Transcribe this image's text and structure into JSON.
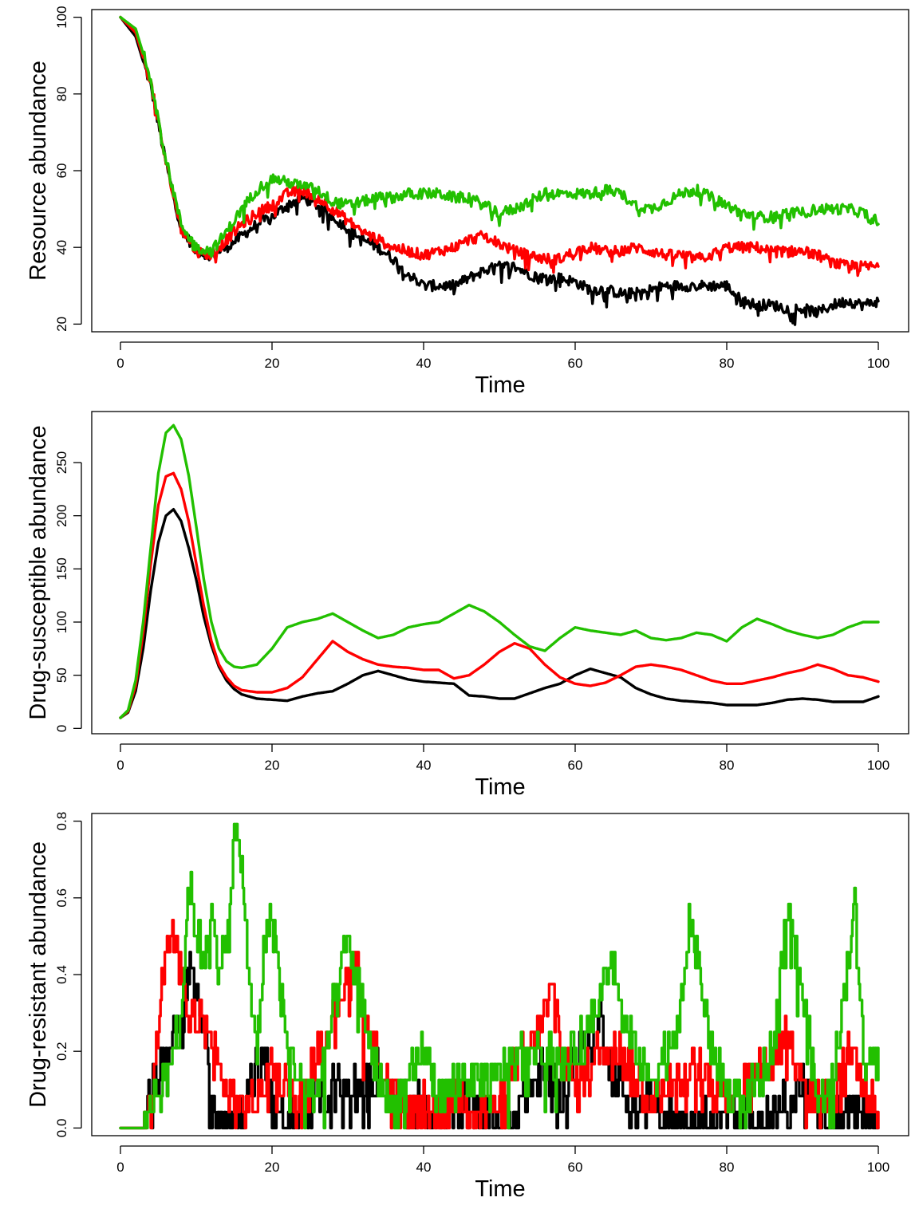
{
  "colors": {
    "black": "#000000",
    "red": "#ff0000",
    "green": "#22c000"
  },
  "chart_data": [
    {
      "type": "line",
      "xlabel": "Time",
      "ylabel": "Resource abundance",
      "xlim": [
        0,
        100
      ],
      "ylim": [
        18,
        102
      ],
      "xticks": [
        0,
        20,
        40,
        60,
        80,
        100
      ],
      "yticks": [
        20,
        40,
        60,
        80,
        100
      ],
      "grid": false,
      "noise": 1.4,
      "series": [
        {
          "color": "#000000",
          "x": [
            0,
            2,
            4,
            6,
            8,
            10,
            12,
            14,
            16,
            18,
            20,
            22,
            24,
            26,
            28,
            30,
            32,
            34,
            36,
            38,
            40,
            42,
            44,
            46,
            48,
            50,
            52,
            54,
            56,
            58,
            60,
            62,
            64,
            66,
            68,
            70,
            72,
            74,
            76,
            78,
            80,
            82,
            84,
            86,
            88,
            90,
            92,
            94,
            96,
            98,
            100
          ],
          "y": [
            100,
            95,
            82,
            62,
            45,
            39,
            38,
            40,
            43,
            46,
            48,
            51,
            53,
            51,
            48,
            45,
            42,
            40,
            37,
            33,
            30,
            30,
            30,
            32,
            34,
            35,
            35,
            33,
            32,
            32,
            31,
            29,
            29,
            28,
            28,
            29,
            30,
            30,
            30,
            30,
            30,
            26,
            25,
            25,
            24,
            24,
            23,
            25,
            26,
            25,
            26
          ]
        },
        {
          "color": "#ff0000",
          "x": [
            0,
            2,
            4,
            6,
            8,
            10,
            12,
            14,
            16,
            18,
            20,
            22,
            24,
            26,
            28,
            30,
            32,
            34,
            36,
            38,
            40,
            42,
            44,
            46,
            48,
            50,
            52,
            54,
            56,
            58,
            60,
            62,
            64,
            66,
            68,
            70,
            72,
            74,
            76,
            78,
            80,
            82,
            84,
            86,
            88,
            90,
            92,
            94,
            96,
            98,
            100
          ],
          "y": [
            100,
            96,
            83,
            62,
            45,
            39,
            38,
            42,
            46,
            49,
            51,
            54,
            55,
            53,
            50,
            47,
            44,
            42,
            40,
            39,
            38,
            39,
            40,
            42,
            43,
            41,
            39,
            38,
            37,
            37,
            39,
            40,
            39,
            39,
            40,
            39,
            38,
            38,
            37,
            38,
            40,
            40,
            40,
            39,
            39,
            39,
            38,
            36,
            35,
            35,
            35
          ]
        },
        {
          "color": "#22c000",
          "x": [
            0,
            2,
            4,
            6,
            8,
            10,
            12,
            14,
            16,
            18,
            20,
            22,
            24,
            26,
            28,
            30,
            32,
            34,
            36,
            38,
            40,
            42,
            44,
            46,
            48,
            50,
            52,
            54,
            56,
            58,
            60,
            62,
            64,
            66,
            68,
            70,
            72,
            74,
            76,
            78,
            80,
            82,
            84,
            86,
            88,
            90,
            92,
            94,
            96,
            98,
            100
          ],
          "y": [
            100,
            97,
            84,
            63,
            46,
            40,
            39,
            44,
            50,
            55,
            58,
            57,
            56,
            55,
            52,
            51,
            52,
            53,
            53,
            54,
            54,
            54,
            53,
            53,
            51,
            49,
            50,
            52,
            54,
            54,
            54,
            54,
            55,
            54,
            51,
            50,
            52,
            54,
            55,
            53,
            51,
            49,
            48,
            48,
            49,
            49,
            50,
            50,
            50,
            49,
            47
          ]
        }
      ]
    },
    {
      "type": "line",
      "xlabel": "Time",
      "ylabel": "Drug-susceptible abundance",
      "xlim": [
        0,
        100
      ],
      "ylim": [
        -5,
        298
      ],
      "xticks": [
        0,
        20,
        40,
        60,
        80,
        100
      ],
      "yticks": [
        0,
        50,
        100,
        150,
        200,
        250
      ],
      "grid": false,
      "noise": 0,
      "series": [
        {
          "color": "#000000",
          "x": [
            0,
            1,
            2,
            3,
            4,
            5,
            6,
            7,
            8,
            9,
            10,
            11,
            12,
            13,
            14,
            15,
            16,
            18,
            20,
            22,
            24,
            26,
            28,
            30,
            32,
            34,
            36,
            38,
            40,
            42,
            44,
            46,
            48,
            50,
            52,
            54,
            56,
            58,
            60,
            62,
            64,
            66,
            68,
            70,
            72,
            74,
            76,
            78,
            80,
            82,
            84,
            86,
            88,
            90,
            92,
            94,
            96,
            98,
            100
          ],
          "y": [
            10,
            15,
            35,
            75,
            130,
            175,
            200,
            206,
            195,
            170,
            140,
            105,
            78,
            58,
            45,
            37,
            32,
            28,
            27,
            26,
            30,
            33,
            35,
            42,
            50,
            54,
            50,
            46,
            44,
            43,
            42,
            31,
            30,
            28,
            28,
            33,
            38,
            42,
            50,
            56,
            52,
            48,
            38,
            32,
            28,
            26,
            25,
            24,
            22,
            22,
            22,
            24,
            27,
            28,
            27,
            25,
            25,
            25,
            30
          ]
        },
        {
          "color": "#ff0000",
          "x": [
            0,
            1,
            2,
            3,
            4,
            5,
            6,
            7,
            8,
            9,
            10,
            11,
            12,
            13,
            14,
            15,
            16,
            18,
            20,
            22,
            24,
            26,
            28,
            30,
            32,
            34,
            36,
            38,
            40,
            42,
            44,
            46,
            48,
            50,
            52,
            54,
            56,
            58,
            60,
            62,
            64,
            66,
            68,
            70,
            72,
            74,
            76,
            78,
            80,
            82,
            84,
            86,
            88,
            90,
            92,
            94,
            96,
            98,
            100
          ],
          "y": [
            10,
            16,
            40,
            90,
            155,
            210,
            237,
            240,
            225,
            195,
            155,
            115,
            82,
            60,
            48,
            40,
            36,
            34,
            34,
            38,
            48,
            65,
            82,
            72,
            65,
            60,
            58,
            57,
            55,
            55,
            47,
            50,
            60,
            72,
            80,
            75,
            60,
            48,
            42,
            40,
            43,
            50,
            58,
            60,
            58,
            55,
            50,
            45,
            42,
            42,
            45,
            48,
            52,
            55,
            60,
            56,
            50,
            48,
            44
          ]
        },
        {
          "color": "#22c000",
          "x": [
            0,
            1,
            2,
            3,
            4,
            5,
            6,
            7,
            8,
            9,
            10,
            11,
            12,
            13,
            14,
            15,
            16,
            18,
            20,
            22,
            24,
            26,
            28,
            30,
            32,
            34,
            36,
            38,
            40,
            42,
            44,
            46,
            48,
            50,
            52,
            54,
            56,
            58,
            60,
            62,
            64,
            66,
            68,
            70,
            72,
            74,
            76,
            78,
            80,
            82,
            84,
            86,
            88,
            90,
            92,
            94,
            96,
            98,
            100
          ],
          "y": [
            10,
            17,
            45,
            100,
            170,
            240,
            278,
            285,
            272,
            238,
            190,
            140,
            100,
            75,
            63,
            58,
            57,
            60,
            75,
            95,
            100,
            103,
            108,
            100,
            92,
            85,
            88,
            95,
            98,
            100,
            108,
            116,
            110,
            100,
            88,
            77,
            73,
            85,
            95,
            92,
            90,
            88,
            92,
            85,
            83,
            85,
            90,
            88,
            82,
            95,
            103,
            98,
            92,
            88,
            85,
            88,
            95,
            100,
            100
          ]
        }
      ]
    },
    {
      "type": "line",
      "xlabel": "Time",
      "ylabel": "Drug-resistant abundance",
      "xlim": [
        0,
        100
      ],
      "ylim": [
        -0.02,
        0.82
      ],
      "xticks": [
        0,
        20,
        40,
        60,
        80,
        100
      ],
      "yticks": [
        0.0,
        0.2,
        0.4,
        0.6,
        0.8
      ],
      "ytick_labels": [
        "0.0",
        "0.2",
        "0.4",
        "0.6",
        "0.8"
      ],
      "grid": false,
      "noise": 0.055,
      "stepped": true,
      "series": [
        {
          "color": "#000000",
          "x": [
            0,
            3,
            4,
            6,
            8,
            9,
            10,
            11,
            12,
            14,
            16,
            18,
            19,
            20,
            22,
            24,
            26,
            28,
            30,
            32,
            34,
            36,
            38,
            40,
            42,
            44,
            46,
            48,
            50,
            52,
            54,
            56,
            58,
            60,
            62,
            63,
            64,
            66,
            68,
            70,
            72,
            74,
            76,
            78,
            80,
            82,
            84,
            86,
            88,
            90,
            92,
            94,
            96,
            98,
            100
          ],
          "y": [
            0,
            0,
            0.08,
            0.2,
            0.28,
            0.42,
            0.35,
            0.28,
            0.04,
            0.04,
            0.04,
            0.15,
            0.2,
            0.06,
            0.0,
            0.06,
            0.08,
            0.1,
            0.12,
            0.08,
            0.15,
            0.08,
            0.06,
            0.06,
            0.04,
            0.04,
            0.06,
            0.04,
            0.0,
            0.04,
            0.1,
            0.16,
            0.08,
            0.2,
            0.22,
            0.3,
            0.2,
            0.1,
            0.04,
            0.08,
            0.04,
            0.0,
            0.04,
            0.0,
            0.04,
            0.04,
            0.0,
            0.04,
            0.08,
            0.12,
            0.04,
            0.02,
            0.04,
            0.04,
            0.0
          ]
        },
        {
          "color": "#ff0000",
          "x": [
            0,
            3,
            4,
            5,
            6,
            7,
            8,
            9,
            10,
            11,
            12,
            13,
            14,
            16,
            18,
            20,
            22,
            24,
            26,
            28,
            30,
            31,
            32,
            34,
            36,
            38,
            40,
            42,
            44,
            46,
            48,
            50,
            52,
            54,
            56,
            57,
            58,
            60,
            62,
            64,
            66,
            68,
            70,
            72,
            74,
            76,
            78,
            80,
            82,
            84,
            86,
            88,
            90,
            92,
            94,
            96,
            98,
            100
          ],
          "y": [
            0,
            0,
            0.1,
            0.3,
            0.45,
            0.5,
            0.38,
            0.25,
            0.3,
            0.28,
            0.22,
            0.15,
            0.1,
            0.04,
            0.08,
            0.16,
            0.1,
            0.06,
            0.2,
            0.3,
            0.4,
            0.48,
            0.28,
            0.2,
            0.08,
            0.04,
            0.06,
            0.04,
            0.08,
            0.06,
            0.04,
            0.08,
            0.16,
            0.2,
            0.3,
            0.36,
            0.2,
            0.1,
            0.16,
            0.22,
            0.2,
            0.12,
            0.08,
            0.1,
            0.12,
            0.16,
            0.12,
            0.08,
            0.12,
            0.14,
            0.18,
            0.25,
            0.1,
            0.06,
            0.1,
            0.22,
            0.12,
            0.04
          ]
        },
        {
          "color": "#22c000",
          "x": [
            0,
            3,
            4,
            6,
            8,
            9,
            10,
            11,
            12,
            13,
            14,
            15,
            16,
            17,
            18,
            19,
            20,
            22,
            24,
            26,
            28,
            30,
            32,
            34,
            36,
            38,
            40,
            42,
            44,
            46,
            48,
            50,
            52,
            54,
            56,
            58,
            60,
            62,
            64,
            65,
            66,
            68,
            70,
            72,
            74,
            75,
            76,
            78,
            80,
            82,
            84,
            86,
            88,
            90,
            92,
            94,
            96,
            97,
            98,
            100
          ],
          "y": [
            0,
            0,
            0.08,
            0.12,
            0.3,
            0.65,
            0.5,
            0.45,
            0.55,
            0.42,
            0.5,
            0.76,
            0.7,
            0.35,
            0.2,
            0.5,
            0.55,
            0.2,
            0.12,
            0.08,
            0.3,
            0.5,
            0.3,
            0.12,
            0.05,
            0.12,
            0.2,
            0.08,
            0.12,
            0.14,
            0.12,
            0.14,
            0.18,
            0.2,
            0.2,
            0.16,
            0.2,
            0.26,
            0.4,
            0.45,
            0.3,
            0.2,
            0.12,
            0.2,
            0.3,
            0.55,
            0.45,
            0.2,
            0.1,
            0.06,
            0.12,
            0.2,
            0.58,
            0.35,
            0.06,
            0.12,
            0.45,
            0.58,
            0.2,
            0.16
          ]
        }
      ]
    }
  ]
}
